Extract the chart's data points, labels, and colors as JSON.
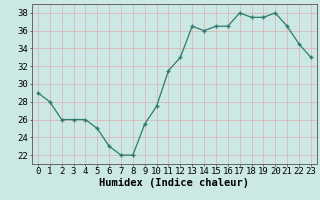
{
  "xlabel": "Humidex (Indice chaleur)",
  "x": [
    0,
    1,
    2,
    3,
    4,
    5,
    6,
    7,
    8,
    9,
    10,
    11,
    12,
    13,
    14,
    15,
    16,
    17,
    18,
    19,
    20,
    21,
    22,
    23
  ],
  "y": [
    29,
    28,
    26,
    26,
    26,
    25,
    23,
    22,
    22,
    25.5,
    27.5,
    31.5,
    33,
    36.5,
    36,
    36.5,
    36.5,
    38,
    37.5,
    37.5,
    38,
    36.5,
    34.5,
    33
  ],
  "ylim": [
    21,
    39
  ],
  "yticks": [
    22,
    24,
    26,
    28,
    30,
    32,
    34,
    36,
    38
  ],
  "line_color": "#2d7b6e",
  "marker_color": "#2d7b6e",
  "bg_color": "#cce8e4",
  "grid_color": "#d8b8b8",
  "label_fontsize": 7.5,
  "tick_fontsize": 6.5
}
